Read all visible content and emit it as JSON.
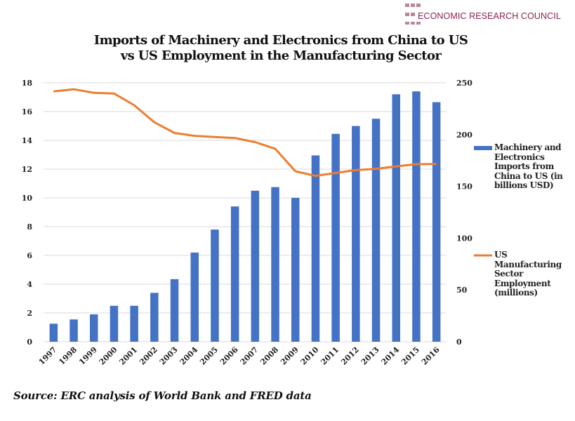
{
  "logo": {
    "text": "ECONOMIC RESEARCH COUNCIL",
    "color": "#8b2252"
  },
  "title_lines": [
    "Imports of Machinery and Electronics from China to US",
    "vs US Employment in the Manufacturing Sector"
  ],
  "source": "Source: ERC analysis of World Bank and FRED data",
  "chart_data": {
    "type": "bar",
    "title": "Imports of Machinery and Electronics from China to US vs US Employment in the Manufacturing Sector",
    "categories": [
      "1997",
      "1998",
      "1999",
      "2000",
      "2001",
      "2002",
      "2003",
      "2004",
      "2005",
      "2006",
      "2007",
      "2008",
      "2009",
      "2010",
      "2011",
      "2012",
      "2013",
      "2014",
      "2015",
      "2016"
    ],
    "series": [
      {
        "name": "Machinery and Electronics Imports from China to US (in billions USD)",
        "type": "bar",
        "axis": "right",
        "color": "#4472c4",
        "values": [
          17.4,
          21.5,
          26.4,
          34.7,
          34.7,
          47.2,
          60.4,
          86.1,
          108.3,
          130.6,
          145.8,
          149.3,
          138.9,
          179.9,
          200.7,
          208.3,
          215.3,
          238.9,
          241.7,
          231.3
        ]
      },
      {
        "name": "US Manufacturing Sector Employment (millions)",
        "type": "line",
        "axis": "left",
        "color": "#ed7d31",
        "values": [
          17.4,
          17.55,
          17.3,
          17.26,
          16.44,
          15.26,
          14.51,
          14.31,
          14.23,
          14.16,
          13.88,
          13.41,
          11.85,
          11.53,
          11.73,
          11.93,
          12.02,
          12.19,
          12.34,
          12.35
        ]
      }
    ],
    "left_axis": {
      "ylim": [
        0,
        18
      ],
      "ticks": [
        "0",
        "2",
        "4",
        "6",
        "8",
        "10",
        "12",
        "14",
        "16",
        "18"
      ]
    },
    "right_axis": {
      "ylim": [
        0,
        250
      ],
      "ticks": [
        "0",
        "50",
        "100",
        "150",
        "200",
        "250"
      ]
    },
    "xlabel": "",
    "ylabel": "",
    "grid": true,
    "legend_position": "right",
    "legend": [
      {
        "label": "Machinery and Electronics Imports from China to US (in billions USD)",
        "lines": [
          "Machinery and",
          "Electronics",
          "Imports from",
          "China to US (in",
          "billions USD)"
        ],
        "color": "#4472c4",
        "marker": "bar"
      },
      {
        "label": "US Manufacturing Sector Employment (millions)",
        "lines": [
          "US",
          "Manufacturing",
          "Sector",
          "Employment",
          "(millions)"
        ],
        "color": "#ed7d31",
        "marker": "line"
      }
    ]
  }
}
